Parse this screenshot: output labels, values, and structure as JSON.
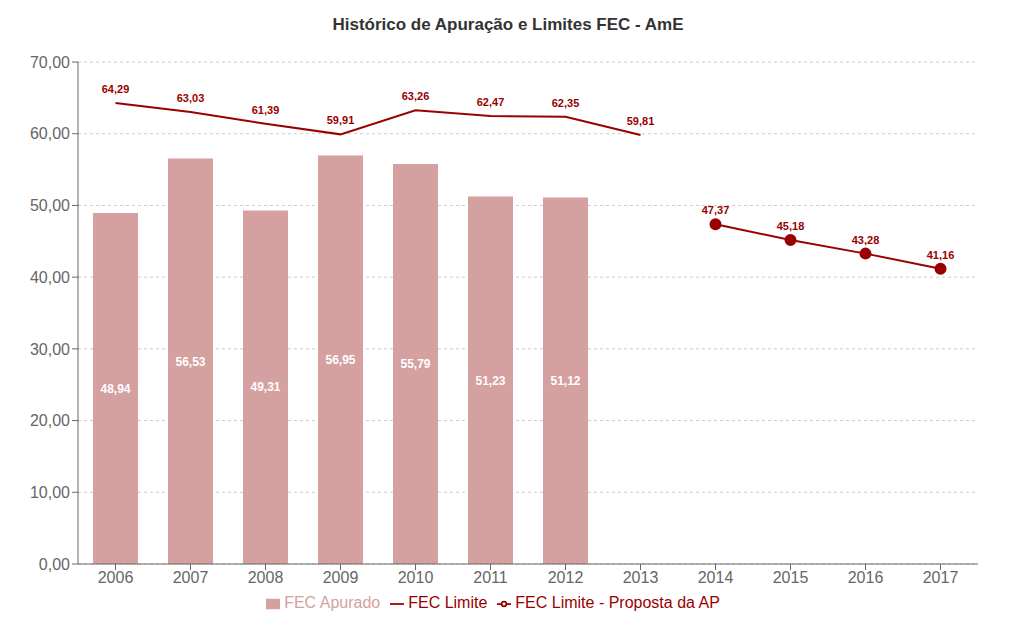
{
  "chart_data": {
    "type": "bar",
    "title": "Histórico de Apuração e Limites FEC - AmE",
    "categories": [
      "2006",
      "2007",
      "2008",
      "2009",
      "2010",
      "2011",
      "2012",
      "2013",
      "2014",
      "2015",
      "2016",
      "2017"
    ],
    "series": [
      {
        "name": "FEC Apurado",
        "type": "bar",
        "color": "#d4a0a0",
        "values": [
          48.94,
          56.53,
          49.31,
          56.95,
          55.79,
          51.23,
          51.12,
          null,
          null,
          null,
          null,
          null
        ],
        "value_labels": [
          "48,94",
          "56,53",
          "49,31",
          "56,95",
          "55,79",
          "51,23",
          "51,12",
          null,
          null,
          null,
          null,
          null
        ]
      },
      {
        "name": "FEC Limite",
        "type": "line",
        "color": "#990000",
        "marker": "none",
        "values": [
          64.29,
          63.03,
          61.39,
          59.91,
          63.26,
          62.47,
          62.35,
          59.81,
          null,
          null,
          null,
          null
        ],
        "value_labels": [
          "64,29",
          "63,03",
          "61,39",
          "59,91",
          "63,26",
          "62,47",
          "62,35",
          "59,81",
          null,
          null,
          null,
          null
        ]
      },
      {
        "name": "FEC Limite - Proposta da AP",
        "type": "line",
        "color": "#990000",
        "marker": "circle",
        "values": [
          null,
          null,
          null,
          null,
          null,
          null,
          null,
          null,
          47.37,
          45.18,
          43.28,
          41.16
        ],
        "value_labels": [
          null,
          null,
          null,
          null,
          null,
          null,
          null,
          null,
          "47,37",
          "45,18",
          "43,28",
          "41,16"
        ]
      }
    ],
    "ylim": [
      0,
      70
    ],
    "yticks": [
      {
        "value": 0,
        "label": "0,00"
      },
      {
        "value": 10,
        "label": "10,00"
      },
      {
        "value": 20,
        "label": "20,00"
      },
      {
        "value": 30,
        "label": "30,00"
      },
      {
        "value": 40,
        "label": "40,00"
      },
      {
        "value": 50,
        "label": "50,00"
      },
      {
        "value": 60,
        "label": "60,00"
      },
      {
        "value": 70,
        "label": "70,00"
      }
    ],
    "grid": true,
    "data_labels": true,
    "legend": "bottom"
  }
}
